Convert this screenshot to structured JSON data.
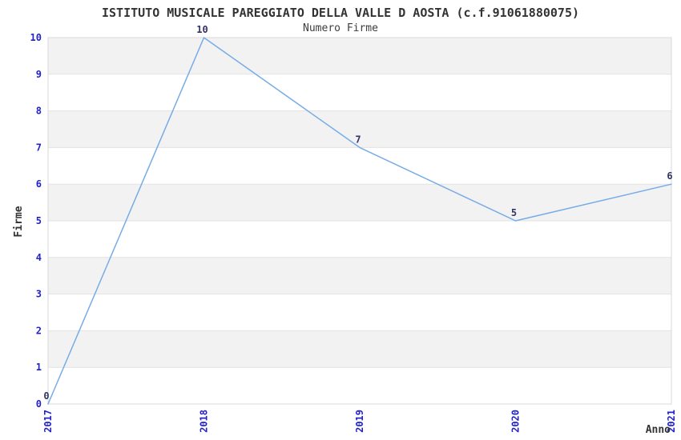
{
  "header": {
    "title": "ISTITUTO MUSICALE PAREGGIATO DELLA VALLE D AOSTA (c.f.91061880075)",
    "subtitle": "Numero Firme"
  },
  "chart_data": {
    "type": "line",
    "categories": [
      "2017",
      "2018",
      "2019",
      "2020",
      "2021"
    ],
    "values": [
      0,
      10,
      7,
      5,
      6
    ],
    "point_labels": [
      "0",
      "10",
      "7",
      "5",
      "6"
    ],
    "title": "ISTITUTO MUSICALE PAREGGIATO DELLA VALLE D AOSTA (c.f.91061880075)",
    "subtitle": "Numero Firme",
    "xlabel": "Anno",
    "ylabel": "Firme",
    "ylim": [
      0,
      10
    ],
    "yticks": [
      0,
      1,
      2,
      3,
      4,
      5,
      6,
      7,
      8,
      9,
      10
    ],
    "grid": true,
    "legend": "none",
    "band_fill_intervals": [
      [
        1,
        2
      ],
      [
        3,
        4
      ],
      [
        5,
        6
      ],
      [
        7,
        8
      ],
      [
        9,
        10
      ]
    ]
  },
  "colors": {
    "line": "#76ACE6",
    "tick_label": "#2222CC",
    "point_label": "#333366",
    "band": "#F2F2F2",
    "gridline": "#E3E3E3",
    "plot_border": "#D9D9D9",
    "text": "#333333"
  }
}
